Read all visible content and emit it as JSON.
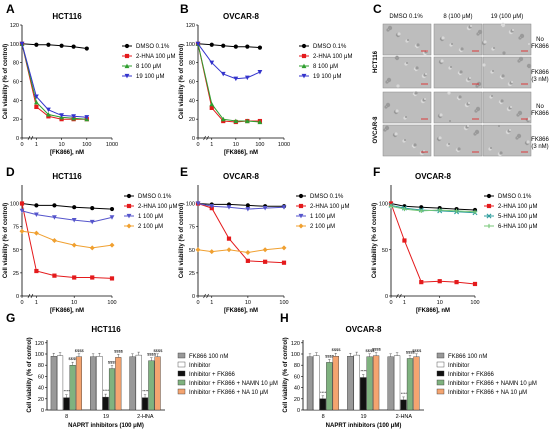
{
  "panels": {
    "A": "A",
    "B": "B",
    "C": "C",
    "D": "D",
    "E": "E",
    "F": "F",
    "G": "G",
    "H": "H"
  },
  "micrograph": {
    "cols": [
      "DMSO 0.1%",
      "8 (100 μM)",
      "19 (100 μM)"
    ],
    "rows": [
      [
        "No",
        "FK866"
      ],
      [
        "FK866",
        "(3 nM)"
      ],
      [
        "No",
        "FK866"
      ],
      [
        "FK866",
        "(3 nM)"
      ]
    ],
    "groups": [
      "HCT116",
      "OVCAR-8"
    ]
  },
  "colors": {
    "dmso": "#000000",
    "hna2": "#e41a1c",
    "c8": "#2e9e2e",
    "c19": "#3333cc",
    "c1": "#5555cc",
    "c2": "#f0a030",
    "hna5": "#2e9e9e",
    "hna6": "#77c777",
    "bar_fk": "#999999",
    "bar_inh": "#ffffff",
    "bar_inh_fk": "#111111",
    "bar_namn": "#7fb27f",
    "bar_na": "#f4a470"
  },
  "chart_data": [
    {
      "id": "A",
      "type": "line",
      "title": "HCT116",
      "xlabel": "[FK866], nM",
      "ylabel": "Cell viability (% of control)",
      "xscale": "log",
      "xticks": [
        0,
        1,
        10,
        100,
        1000
      ],
      "ylim": [
        0,
        120
      ],
      "yticks": [
        0,
        20,
        40,
        60,
        80,
        100,
        120
      ],
      "legend_position": "top-right",
      "series": [
        {
          "name": "DMSO 0.1%",
          "color": "#000000",
          "marker": "circle",
          "x": [
            0,
            1,
            3,
            10,
            30,
            100
          ],
          "y": [
            100,
            99,
            99,
            98,
            97,
            95
          ]
        },
        {
          "name": "2-HNA 100 μM",
          "color": "#e41a1c",
          "marker": "square",
          "x": [
            0,
            1,
            3,
            10,
            30,
            100
          ],
          "y": [
            100,
            33,
            23,
            20,
            20,
            20
          ]
        },
        {
          "name": "8 100 μM",
          "color": "#2e9e2e",
          "marker": "triangle-up",
          "x": [
            0,
            1,
            3,
            10,
            30,
            100
          ],
          "y": [
            100,
            38,
            25,
            22,
            21,
            20
          ]
        },
        {
          "name": "19 100 μM",
          "color": "#3333cc",
          "marker": "triangle-down",
          "x": [
            0,
            1,
            3,
            10,
            30,
            100
          ],
          "y": [
            100,
            44,
            30,
            24,
            23,
            22
          ]
        }
      ]
    },
    {
      "id": "B",
      "type": "line",
      "title": "OVCAR-8",
      "xlabel": "[FK866], nM",
      "ylabel": "Cell viability (% of control)",
      "xscale": "log",
      "xticks": [
        0,
        1,
        10,
        100,
        1000
      ],
      "ylim": [
        0,
        120
      ],
      "yticks": [
        0,
        20,
        40,
        60,
        80,
        100,
        120
      ],
      "legend_position": "top-right",
      "series": [
        {
          "name": "DMSO 0.1%",
          "color": "#000000",
          "marker": "circle",
          "x": [
            0,
            1,
            3,
            10,
            30,
            100
          ],
          "y": [
            100,
            99,
            98,
            97,
            97,
            96
          ]
        },
        {
          "name": "2-HNA 100 μM",
          "color": "#e41a1c",
          "marker": "square",
          "x": [
            0,
            1,
            3,
            10,
            30,
            100
          ],
          "y": [
            100,
            32,
            18,
            17,
            18,
            18
          ]
        },
        {
          "name": "8 100 μM",
          "color": "#2e9e2e",
          "marker": "triangle-up",
          "x": [
            0,
            1,
            3,
            10,
            30,
            100
          ],
          "y": [
            100,
            36,
            20,
            18,
            18,
            17
          ]
        },
        {
          "name": "19 100 μM",
          "color": "#3333cc",
          "marker": "triangle-down",
          "x": [
            0,
            1,
            3,
            10,
            30,
            100
          ],
          "y": [
            100,
            80,
            68,
            63,
            64,
            70
          ]
        }
      ]
    },
    {
      "id": "D",
      "type": "line",
      "title": "HCT116",
      "xlabel": "[FK866], nM",
      "ylabel": "Cell viability (% of control)",
      "xscale": "log",
      "xticks": [
        0,
        1,
        10,
        100
      ],
      "ylim": [
        0,
        120
      ],
      "yticks": [
        0,
        25,
        50,
        75,
        100
      ],
      "legend_position": "top-right",
      "series": [
        {
          "name": "DMSO 0.1%",
          "color": "#000000",
          "marker": "circle",
          "x": [
            0,
            1,
            3,
            10,
            30,
            100
          ],
          "y": [
            100,
            98,
            98,
            96,
            95,
            94
          ]
        },
        {
          "name": "2-HNA 100 μM",
          "color": "#e41a1c",
          "marker": "square",
          "x": [
            0,
            1,
            3,
            10,
            30,
            100
          ],
          "y": [
            100,
            27,
            22,
            20,
            20,
            19
          ]
        },
        {
          "name": "1 100 μM",
          "color": "#5555cc",
          "marker": "triangle-down",
          "x": [
            0,
            1,
            3,
            10,
            30,
            100
          ],
          "y": [
            92,
            88,
            85,
            82,
            80,
            85
          ]
        },
        {
          "name": "2 100 μM",
          "color": "#f0a030",
          "marker": "diamond",
          "x": [
            0,
            1,
            3,
            10,
            30,
            100
          ],
          "y": [
            70,
            68,
            60,
            55,
            52,
            55
          ]
        }
      ]
    },
    {
      "id": "E",
      "type": "line",
      "title": "OVCAR-8",
      "xlabel": "[FK866], nM",
      "ylabel": "Cell viability (% of control)",
      "xscale": "log",
      "xticks": [
        0,
        1,
        10,
        100
      ],
      "ylim": [
        0,
        120
      ],
      "yticks": [
        0,
        25,
        50,
        75,
        100
      ],
      "legend_position": "top-right",
      "series": [
        {
          "name": "DMSO 0.1%",
          "color": "#000000",
          "marker": "circle",
          "x": [
            0,
            1,
            3,
            10,
            30,
            100
          ],
          "y": [
            100,
            99,
            99,
            98,
            97,
            97
          ]
        },
        {
          "name": "2-HNA 100 μM",
          "color": "#e41a1c",
          "marker": "square",
          "x": [
            0,
            1,
            3,
            10,
            30,
            100
          ],
          "y": [
            100,
            95,
            62,
            38,
            37,
            36
          ]
        },
        {
          "name": "1 100 μM",
          "color": "#5555cc",
          "marker": "triangle-down",
          "x": [
            0,
            1,
            3,
            10,
            30,
            100
          ],
          "y": [
            100,
            97,
            96,
            94,
            95,
            96
          ]
        },
        {
          "name": "2 100 μM",
          "color": "#f0a030",
          "marker": "diamond",
          "x": [
            0,
            1,
            3,
            10,
            30,
            100
          ],
          "y": [
            50,
            48,
            50,
            47,
            50,
            52
          ]
        }
      ]
    },
    {
      "id": "F",
      "type": "line",
      "title": "OVCAR-8",
      "xlabel": "[FK866], nM",
      "ylabel": "Cell viability (% of control)",
      "xscale": "log",
      "xticks": [
        0,
        1,
        10,
        100
      ],
      "ylim": [
        0,
        120
      ],
      "yticks": [
        0,
        50,
        100
      ],
      "legend_position": "top-right",
      "series": [
        {
          "name": "DMSO 0.1%",
          "color": "#000000",
          "marker": "circle",
          "x": [
            0,
            1,
            3,
            10,
            30,
            100
          ],
          "y": [
            100,
            97,
            96,
            95,
            94,
            93
          ]
        },
        {
          "name": "2-HNA 100 μM",
          "color": "#e41a1c",
          "marker": "square",
          "x": [
            0,
            1,
            3,
            10,
            30,
            100
          ],
          "y": [
            100,
            60,
            15,
            16,
            15,
            13
          ]
        },
        {
          "name": "5-HNA 100 μM",
          "color": "#2e9e9e",
          "marker": "x",
          "x": [
            0,
            1,
            3,
            10,
            30,
            100
          ],
          "y": [
            98,
            95,
            93,
            92,
            91,
            90
          ]
        },
        {
          "name": "6-HNA 100 μM",
          "color": "#77c777",
          "marker": "plus",
          "x": [
            0,
            1,
            3,
            10,
            30,
            100
          ],
          "y": [
            97,
            94,
            92,
            93,
            92,
            91
          ]
        }
      ]
    },
    {
      "id": "G",
      "type": "bar",
      "title": "HCT116",
      "xlabel": "NAPRT inhibitors (100 μM)",
      "ylabel": "Cell viability (% of control)",
      "ylim": [
        0,
        125
      ],
      "yticks": [
        0,
        20,
        40,
        60,
        80,
        100,
        120
      ],
      "categories": [
        "8",
        "19",
        "2-HNA"
      ],
      "legend_position": "right",
      "series": [
        {
          "name": "FK866 100 nM",
          "color": "#999999",
          "values": [
            96,
            95,
            95
          ]
        },
        {
          "name": "Inhibitor",
          "color": "#ffffff",
          "values": [
            97,
            96,
            98
          ]
        },
        {
          "name": "Inhibitor + FK866",
          "color": "#111111",
          "values": [
            22,
            23,
            22
          ]
        },
        {
          "name": "Inhibitor + FK866 + NAMN 10 μM",
          "color": "#7fb27f",
          "values": [
            80,
            74,
            88
          ]
        },
        {
          "name": "Inhibitor + FK866 + NA 10 μM",
          "color": "#f4a470",
          "values": [
            95,
            94,
            95
          ]
        }
      ],
      "annotations": [
        "****",
        "$$$$",
        "$$$$",
        "****",
        "$$$$",
        "$$$$",
        "****",
        "$$$$",
        "$$$$"
      ]
    },
    {
      "id": "H",
      "type": "bar",
      "title": "OVCAR-8",
      "xlabel": "NAPRT inhibitors (100 μM)",
      "ylabel": "Cell viability (% of control)",
      "ylim": [
        0,
        125
      ],
      "yticks": [
        0,
        20,
        40,
        60,
        80,
        100,
        120
      ],
      "categories": [
        "8",
        "19",
        "2-HNA"
      ],
      "legend_position": "right",
      "series": [
        {
          "name": "FK866 100 nM",
          "color": "#999999",
          "values": [
            95,
            96,
            95
          ]
        },
        {
          "name": "Inhibitor",
          "color": "#ffffff",
          "values": [
            97,
            98,
            97
          ]
        },
        {
          "name": "Inhibitor + FK866",
          "color": "#111111",
          "values": [
            20,
            58,
            18
          ]
        },
        {
          "name": "Inhibitor + FK866 + NAMN 10 μM",
          "color": "#7fb27f",
          "values": [
            85,
            95,
            92
          ]
        },
        {
          "name": "Inhibitor + FK866 + NA 10 μM",
          "color": "#f4a470",
          "values": [
            96,
            97,
            95
          ]
        }
      ],
      "annotations": [
        "****",
        "$$$$",
        "$$$$",
        "****",
        "$$$$",
        "$$$$",
        "****",
        "$$$$",
        "$$$$"
      ]
    }
  ]
}
